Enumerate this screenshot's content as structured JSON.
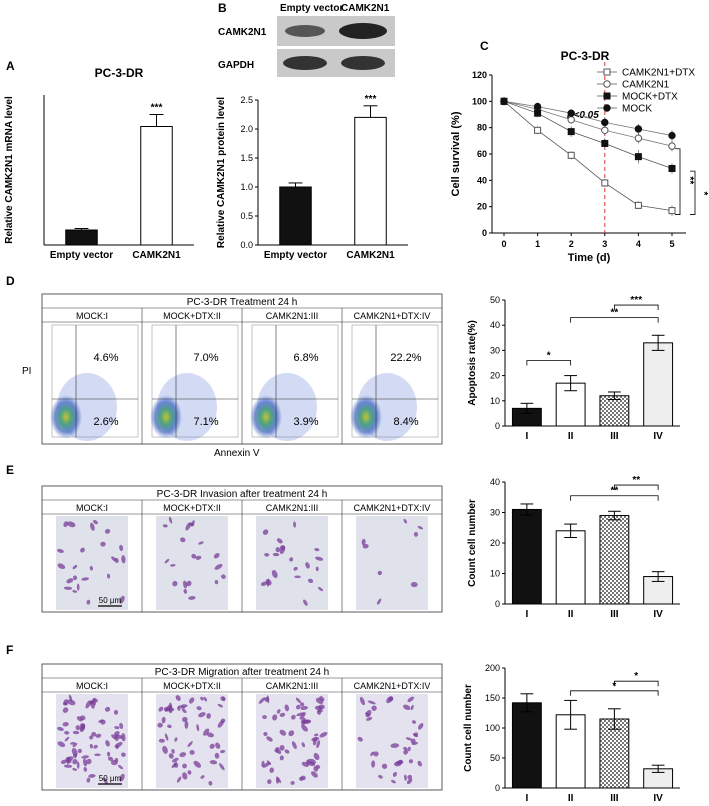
{
  "panels": {
    "A": "A",
    "B": "B",
    "C": "C",
    "D": "D",
    "E": "E",
    "F": "F"
  },
  "blot": {
    "col_labels": [
      "Empty vector",
      "CAMK2N1"
    ],
    "row_labels": [
      "CAMK2N1",
      "GAPDH"
    ]
  },
  "flow": {
    "header": "PC-3-DR    Treatment 24  h",
    "groups": [
      "MOCK:I",
      "MOCK+DTX:II",
      "CAMK2N1:III",
      "CAMK2N1+DTX:IV"
    ],
    "upper": [
      "4.6%",
      "7.0%",
      "6.8%",
      "22.2%"
    ],
    "lower": [
      "2.6%",
      "7.1%",
      "3.9%",
      "8.4%"
    ],
    "ylabel": "PI",
    "xlabel": "Annexin V"
  },
  "invasion": {
    "header": "PC-3-DR    Invasion after treatment 24  h",
    "groups": [
      "MOCK:I",
      "MOCK+DTX:II",
      "CAMK2N1:III",
      "CAMK2N1+DTX:IV"
    ],
    "scalebar": "50 μm"
  },
  "migration": {
    "header": "PC-3-DR    Migration after treatment 24  h",
    "groups": [
      "MOCK:I",
      "MOCK+DTX:II",
      "CAMK2N1:III",
      "CAMK2N1+DTX:IV"
    ],
    "scalebar": "50 μm"
  },
  "chart_data": [
    {
      "id": "A",
      "type": "bar",
      "title": "PC-3-DR",
      "categories": [
        "Empty vector",
        "CAMK2N1"
      ],
      "values": [
        1.0,
        7.9
      ],
      "errors": [
        0.1,
        0.8
      ],
      "ylabel": "Relative CAMK2N1 mRNA level",
      "ylim": [
        0,
        10
      ],
      "yticks": [],
      "sig": [
        "",
        "***"
      ]
    },
    {
      "id": "B",
      "type": "bar",
      "title": "",
      "categories": [
        "Empty vector",
        "CAMK2N1"
      ],
      "values": [
        1.0,
        2.2
      ],
      "errors": [
        0.07,
        0.2
      ],
      "ylabel": "Relative CAMK2N1 protein level",
      "ylim": [
        0,
        2.5
      ],
      "yticks": [
        "0.0",
        "0.5",
        "1.0",
        "1.5",
        "2.0",
        "2.5"
      ],
      "sig": [
        "",
        "***"
      ]
    },
    {
      "id": "C",
      "type": "line",
      "title": "PC-3-DR",
      "xlabel": "Time (d)",
      "ylabel": "Cell survival (%)",
      "x": [
        0,
        1,
        2,
        3,
        4,
        5
      ],
      "xlim": [
        0,
        5
      ],
      "ylim": [
        0,
        120
      ],
      "yticks": [
        "0",
        "20",
        "40",
        "60",
        "80",
        "100",
        "120"
      ],
      "xticks": [
        "0",
        "1",
        "2",
        "3",
        "4",
        "5"
      ],
      "annotation": "P<0.05",
      "sig": [
        "**",
        "*"
      ],
      "series": [
        {
          "name": "CAMK2N1+DTX",
          "values": [
            100,
            78,
            59,
            38,
            21,
            17
          ]
        },
        {
          "name": "CAMK2N1",
          "values": [
            100,
            94,
            86,
            78,
            72,
            66
          ]
        },
        {
          "name": "MOCK+DTX",
          "values": [
            100,
            91,
            77,
            68,
            58,
            49
          ]
        },
        {
          "name": "MOCK",
          "values": [
            100,
            96,
            91,
            84,
            79,
            74
          ]
        }
      ]
    },
    {
      "id": "D",
      "type": "bar",
      "title": "",
      "categories": [
        "I",
        "II",
        "III",
        "IV"
      ],
      "values": [
        7,
        17,
        12,
        33
      ],
      "errors": [
        2,
        3,
        1.5,
        3
      ],
      "ylabel": "Apoptosis rate(%)",
      "ylim": [
        0,
        50
      ],
      "yticks": [
        "0",
        "10",
        "20",
        "30",
        "40",
        "50"
      ],
      "sig": [
        "*",
        "**",
        "***"
      ]
    },
    {
      "id": "E",
      "type": "bar",
      "title": "",
      "categories": [
        "I",
        "II",
        "III",
        "IV"
      ],
      "values": [
        31,
        24,
        29,
        9
      ],
      "errors": [
        1.8,
        2.2,
        1.4,
        1.6
      ],
      "ylabel": "Count  cell number",
      "ylim": [
        0,
        40
      ],
      "yticks": [
        "0",
        "10",
        "20",
        "30",
        "40"
      ],
      "sig": [
        "**",
        "**"
      ]
    },
    {
      "id": "F",
      "type": "bar",
      "title": "",
      "categories": [
        "I",
        "II",
        "III",
        "IV"
      ],
      "values": [
        142,
        122,
        115,
        32
      ],
      "errors": [
        15,
        24,
        17,
        6
      ],
      "ylabel": "Count  cell number",
      "ylim": [
        0,
        200
      ],
      "yticks": [
        "0",
        "50",
        "100",
        "150",
        "200"
      ],
      "sig": [
        "*",
        "*"
      ]
    }
  ]
}
